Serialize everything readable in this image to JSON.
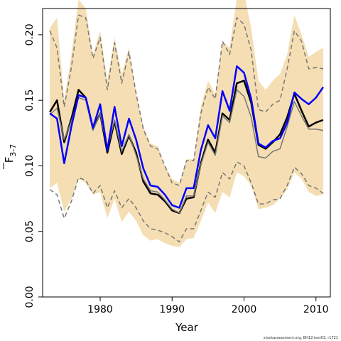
{
  "chart_data": {
    "type": "line",
    "xlabel": "Year",
    "ylabel": "F",
    "ylabel_overbar": true,
    "ylabel_subscript": "3-7",
    "xlim": [
      1972,
      2012
    ],
    "ylim": [
      0,
      0.22
    ],
    "x_ticks": [
      1980,
      1990,
      2000,
      2010
    ],
    "y_ticks": [
      0.0,
      0.05,
      0.1,
      0.15,
      0.2
    ],
    "x_tick_labels": [
      "1980",
      "1990",
      "2000",
      "2010"
    ],
    "y_tick_labels": [
      "0.00",
      "0.05",
      "0.10",
      "0.15",
      "0.20"
    ],
    "grid": false,
    "credit": "stockassessment.org, BH12-test03, r1721",
    "x": [
      1973,
      1974,
      1975,
      1976,
      1977,
      1978,
      1979,
      1980,
      1981,
      1982,
      1983,
      1984,
      1985,
      1986,
      1987,
      1988,
      1989,
      1990,
      1991,
      1992,
      1993,
      1994,
      1995,
      1996,
      1997,
      1998,
      1999,
      2000,
      2001,
      2002,
      2003,
      2004,
      2005,
      2006,
      2007,
      2008,
      2009,
      2010,
      2011
    ],
    "band": {
      "color": "#f5deb3",
      "upper": [
        0.205,
        0.213,
        0.15,
        0.185,
        0.227,
        0.22,
        0.185,
        0.203,
        0.165,
        0.198,
        0.17,
        0.19,
        0.155,
        0.13,
        0.117,
        0.115,
        0.1,
        0.09,
        0.087,
        0.105,
        0.105,
        0.145,
        0.165,
        0.155,
        0.195,
        0.19,
        0.228,
        0.232,
        0.205,
        0.165,
        0.158,
        0.165,
        0.17,
        0.185,
        0.215,
        0.2,
        0.183,
        0.187,
        0.19
      ],
      "lower": [
        0.083,
        0.087,
        0.065,
        0.075,
        0.09,
        0.087,
        0.078,
        0.08,
        0.06,
        0.075,
        0.057,
        0.065,
        0.058,
        0.047,
        0.043,
        0.044,
        0.041,
        0.039,
        0.038,
        0.044,
        0.045,
        0.058,
        0.072,
        0.064,
        0.08,
        0.076,
        0.095,
        0.092,
        0.085,
        0.067,
        0.068,
        0.07,
        0.075,
        0.082,
        0.095,
        0.09,
        0.08,
        0.077,
        0.078
      ]
    },
    "series": [
      {
        "color": "#000000",
        "width": 2.5,
        "dash": "none",
        "values": [
          0.141,
          0.15,
          0.118,
          0.136,
          0.158,
          0.152,
          0.128,
          0.14,
          0.11,
          0.134,
          0.109,
          0.123,
          0.11,
          0.088,
          0.079,
          0.078,
          0.073,
          0.066,
          0.064,
          0.075,
          0.076,
          0.102,
          0.12,
          0.11,
          0.14,
          0.135,
          0.163,
          0.165,
          0.148,
          0.116,
          0.113,
          0.118,
          0.124,
          0.137,
          0.155,
          0.142,
          0.13,
          0.133,
          0.135
        ]
      },
      {
        "color": "#777777",
        "width": 1.5,
        "dash": "none",
        "values": [
          0.139,
          0.144,
          0.12,
          0.134,
          0.152,
          0.15,
          0.127,
          0.14,
          0.113,
          0.135,
          0.111,
          0.124,
          0.108,
          0.09,
          0.081,
          0.08,
          0.074,
          0.067,
          0.064,
          0.077,
          0.077,
          0.101,
          0.118,
          0.108,
          0.138,
          0.133,
          0.158,
          0.153,
          0.137,
          0.107,
          0.106,
          0.111,
          0.113,
          0.13,
          0.149,
          0.138,
          0.128,
          0.128,
          0.127
        ]
      },
      {
        "color": "#0000ff",
        "width": 2.5,
        "dash": "none",
        "values": [
          0.14,
          0.136,
          0.102,
          0.13,
          0.154,
          0.152,
          0.129,
          0.147,
          0.112,
          0.145,
          0.115,
          0.136,
          0.12,
          0.098,
          0.085,
          0.084,
          0.078,
          0.07,
          0.068,
          0.083,
          0.083,
          0.112,
          0.131,
          0.121,
          0.157,
          0.142,
          0.176,
          0.171,
          0.151,
          0.117,
          0.114,
          0.119,
          0.121,
          0.133,
          0.156,
          0.151,
          0.147,
          0.152,
          0.16
        ]
      },
      {
        "color": "#777777",
        "width": 1.5,
        "dash": "6,4",
        "values": [
          0.203,
          0.19,
          0.145,
          0.175,
          0.215,
          0.213,
          0.182,
          0.198,
          0.158,
          0.194,
          0.163,
          0.187,
          0.155,
          0.128,
          0.115,
          0.113,
          0.1,
          0.087,
          0.085,
          0.104,
          0.104,
          0.14,
          0.16,
          0.151,
          0.195,
          0.185,
          0.213,
          0.208,
          0.188,
          0.143,
          0.141,
          0.147,
          0.15,
          0.174,
          0.203,
          0.195,
          0.174,
          0.175,
          0.174
        ]
      },
      {
        "color": "#777777",
        "width": 1.5,
        "dash": "6,4",
        "values": [
          0.082,
          0.078,
          0.06,
          0.073,
          0.091,
          0.089,
          0.079,
          0.085,
          0.068,
          0.081,
          0.068,
          0.075,
          0.068,
          0.058,
          0.052,
          0.051,
          0.049,
          0.046,
          0.042,
          0.052,
          0.052,
          0.066,
          0.08,
          0.076,
          0.095,
          0.09,
          0.103,
          0.1,
          0.087,
          0.071,
          0.071,
          0.074,
          0.075,
          0.085,
          0.099,
          0.094,
          0.085,
          0.083,
          0.079
        ]
      }
    ]
  }
}
